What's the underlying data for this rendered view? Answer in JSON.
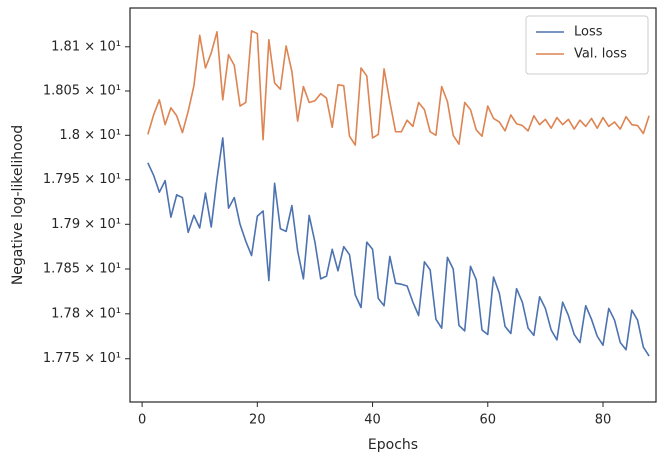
{
  "chart_data": {
    "type": "line",
    "xlabel": "Epochs",
    "ylabel": "Negative log-likelihood",
    "x": [
      1,
      2,
      3,
      4,
      5,
      6,
      7,
      8,
      9,
      10,
      11,
      12,
      13,
      14,
      15,
      16,
      17,
      18,
      19,
      20,
      21,
      22,
      23,
      24,
      25,
      26,
      27,
      28,
      29,
      30,
      31,
      32,
      33,
      34,
      35,
      36,
      37,
      38,
      39,
      40,
      41,
      42,
      43,
      44,
      45,
      46,
      47,
      48,
      49,
      50,
      51,
      52,
      53,
      54,
      55,
      56,
      57,
      58,
      59,
      60,
      61,
      62,
      63,
      64,
      65,
      66,
      67,
      68,
      69,
      70,
      71,
      72,
      73,
      74,
      75,
      76,
      77,
      78,
      79,
      80,
      81,
      82,
      83,
      84,
      85,
      86,
      87,
      88
    ],
    "series": [
      {
        "name": "Loss",
        "color": "#4c72b0",
        "values": [
          17.969,
          17.955,
          17.936,
          17.949,
          17.908,
          17.933,
          17.93,
          17.891,
          17.91,
          17.896,
          17.935,
          17.897,
          17.951,
          17.997,
          17.918,
          17.93,
          17.9,
          17.881,
          17.865,
          17.909,
          17.915,
          17.837,
          17.946,
          17.895,
          17.892,
          17.921,
          17.87,
          17.839,
          17.91,
          17.88,
          17.839,
          17.842,
          17.872,
          17.848,
          17.875,
          17.866,
          17.821,
          17.807,
          17.88,
          17.872,
          17.817,
          17.809,
          17.864,
          17.834,
          17.833,
          17.831,
          17.813,
          17.798,
          17.858,
          17.849,
          17.794,
          17.784,
          17.863,
          17.85,
          17.787,
          17.781,
          17.853,
          17.838,
          17.782,
          17.777,
          17.841,
          17.823,
          17.786,
          17.778,
          17.828,
          17.813,
          17.784,
          17.776,
          17.819,
          17.806,
          17.782,
          17.771,
          17.813,
          17.798,
          17.777,
          17.768,
          17.809,
          17.794,
          17.775,
          17.765,
          17.806,
          17.793,
          17.768,
          17.76,
          17.804,
          17.793,
          17.763,
          17.753
        ]
      },
      {
        "name": "Val. loss",
        "color": "#dd8452",
        "values": [
          18.001,
          18.023,
          18.04,
          18.012,
          18.031,
          18.022,
          18.003,
          18.027,
          18.056,
          18.113,
          18.076,
          18.093,
          18.117,
          18.04,
          18.091,
          18.079,
          18.033,
          18.037,
          18.118,
          18.115,
          17.995,
          18.108,
          18.059,
          18.052,
          18.101,
          18.072,
          18.016,
          18.055,
          18.037,
          18.039,
          18.047,
          18.042,
          18.009,
          18.057,
          18.056,
          17.999,
          17.989,
          18.076,
          18.067,
          17.997,
          18.001,
          18.075,
          18.038,
          18.004,
          18.004,
          18.017,
          18.01,
          18.037,
          18.029,
          18.004,
          18.0,
          18.055,
          18.038,
          18.0,
          17.99,
          18.037,
          18.029,
          18.006,
          17.999,
          18.033,
          18.019,
          18.015,
          18.005,
          18.023,
          18.013,
          18.011,
          18.005,
          18.022,
          18.012,
          18.018,
          18.008,
          18.02,
          18.012,
          18.018,
          18.007,
          18.017,
          18.01,
          18.019,
          18.008,
          18.02,
          18.01,
          18.015,
          18.007,
          18.021,
          18.012,
          18.011,
          18.002,
          18.022
        ]
      }
    ],
    "xlim": [
      -2.1,
      89.2
    ],
    "xticks": [
      0,
      20,
      40,
      60,
      80
    ],
    "ylim": [
      17.702,
      18.144
    ],
    "yscale": "log",
    "yticks": [
      {
        "value": 17.75,
        "label": "1.775 × 10¹"
      },
      {
        "value": 17.8,
        "label": "1.78 × 10¹"
      },
      {
        "value": 17.85,
        "label": "1.785 × 10¹"
      },
      {
        "value": 17.9,
        "label": "1.79 × 10¹"
      },
      {
        "value": 17.95,
        "label": "1.795 × 10¹"
      },
      {
        "value": 18.0,
        "label": "1.8 × 10¹"
      },
      {
        "value": 18.05,
        "label": "1.805 × 10¹"
      },
      {
        "value": 18.1,
        "label": "1.81 × 10¹"
      }
    ],
    "grid": false,
    "legend": "upper right"
  }
}
